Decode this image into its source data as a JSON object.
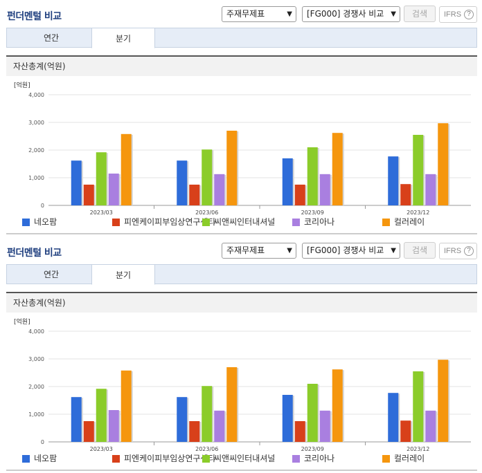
{
  "panels": [
    {
      "title": "펀더멘털 비교",
      "select_statement": "주재무제표",
      "select_compare": "[FG000] 경쟁사 비교",
      "search_label": "검색",
      "ifrs_label": "IFRS",
      "ifrs_help": "?",
      "tabs": [
        "연간",
        "분기"
      ],
      "active_tab": "분기",
      "section_title": "자산총계(억원)",
      "legend": [
        "네오팜",
        "피엔케이피부임상연구센타",
        "씨앤씨인터내셔널",
        "코리아나",
        "컬러레이"
      ]
    },
    {
      "title": "펀더멘털 비교",
      "select_statement": "주재무제표",
      "select_compare": "[FG000] 경쟁사 비교",
      "search_label": "검색",
      "ifrs_label": "IFRS",
      "ifrs_help": "?",
      "tabs": [
        "연간",
        "분기"
      ],
      "active_tab": "분기",
      "section_title": "자산총계(억원)",
      "legend": [
        "네오팜",
        "피엔케이피부임상연구센타",
        "씨앤씨인터내셔널",
        "코리아나",
        "컬러레이"
      ]
    }
  ],
  "chart_data": [
    {
      "type": "bar",
      "unit_label": "[억원]",
      "categories": [
        "2023/03",
        "2023/06",
        "2023/09",
        "2023/12"
      ],
      "ylim": [
        0,
        4000
      ],
      "yticks": [
        "0",
        "1,000",
        "2,000",
        "3,000",
        "4,000"
      ],
      "series": [
        {
          "name": "네오팜",
          "color": "#2e6cd9",
          "values": [
            1620,
            1620,
            1700,
            1770
          ]
        },
        {
          "name": "피엔케이피부임상연구센타",
          "color": "#d8401a",
          "values": [
            750,
            750,
            750,
            770
          ]
        },
        {
          "name": "씨앤씨인터내셔널",
          "color": "#8bcc2a",
          "values": [
            1920,
            2020,
            2100,
            2550
          ]
        },
        {
          "name": "코리아나",
          "color": "#a97fe0",
          "values": [
            1150,
            1130,
            1130,
            1130
          ]
        },
        {
          "name": "컬러레이",
          "color": "#f5960e",
          "values": [
            2580,
            2700,
            2620,
            2970
          ]
        }
      ]
    },
    {
      "type": "bar",
      "unit_label": "[억원]",
      "categories": [
        "2023/03",
        "2023/06",
        "2023/09",
        "2023/12"
      ],
      "ylim": [
        0,
        4000
      ],
      "yticks": [
        "0",
        "1,000",
        "2,000",
        "3,000",
        "4,000"
      ],
      "series": [
        {
          "name": "네오팜",
          "color": "#2e6cd9",
          "values": [
            1620,
            1620,
            1700,
            1770
          ]
        },
        {
          "name": "피엔케이피부임상연구센타",
          "color": "#d8401a",
          "values": [
            750,
            750,
            750,
            770
          ]
        },
        {
          "name": "씨앤씨인터내셔널",
          "color": "#8bcc2a",
          "values": [
            1920,
            2020,
            2100,
            2550
          ]
        },
        {
          "name": "코리아나",
          "color": "#a97fe0",
          "values": [
            1150,
            1130,
            1130,
            1130
          ]
        },
        {
          "name": "컬러레이",
          "color": "#f5960e",
          "values": [
            2580,
            2700,
            2620,
            2970
          ]
        }
      ]
    }
  ]
}
